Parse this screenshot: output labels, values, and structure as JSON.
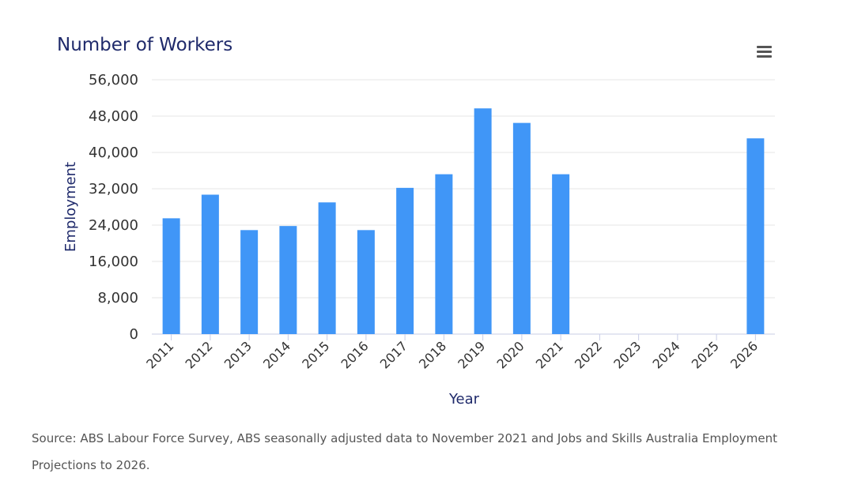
{
  "chart_data": {
    "type": "bar",
    "title": "Number of Workers",
    "xlabel": "Year",
    "ylabel": "Employment",
    "categories": [
      "2011",
      "2012",
      "2013",
      "2014",
      "2015",
      "2016",
      "2017",
      "2018",
      "2019",
      "2020",
      "2021",
      "2022",
      "2023",
      "2024",
      "2025",
      "2026"
    ],
    "values": [
      25500,
      30700,
      22900,
      23800,
      29000,
      22900,
      32200,
      35200,
      49700,
      46500,
      35200,
      null,
      null,
      null,
      null,
      43100
    ],
    "ylim": [
      0,
      56000
    ],
    "yticks": [
      0,
      8000,
      16000,
      24000,
      32000,
      40000,
      48000,
      56000
    ],
    "ytick_labels": [
      "0",
      "8,000",
      "16,000",
      "24,000",
      "32,000",
      "40,000",
      "48,000",
      "56,000"
    ],
    "grid": true,
    "legend": "none",
    "bar_color": "#4096f7"
  },
  "source_note": "Source: ABS Labour Force Survey, ABS seasonally adjusted data to November 2021 and Jobs and Skills Australia Employment Projections to 2026.",
  "menu": {
    "icon": "hamburger-menu-icon"
  }
}
